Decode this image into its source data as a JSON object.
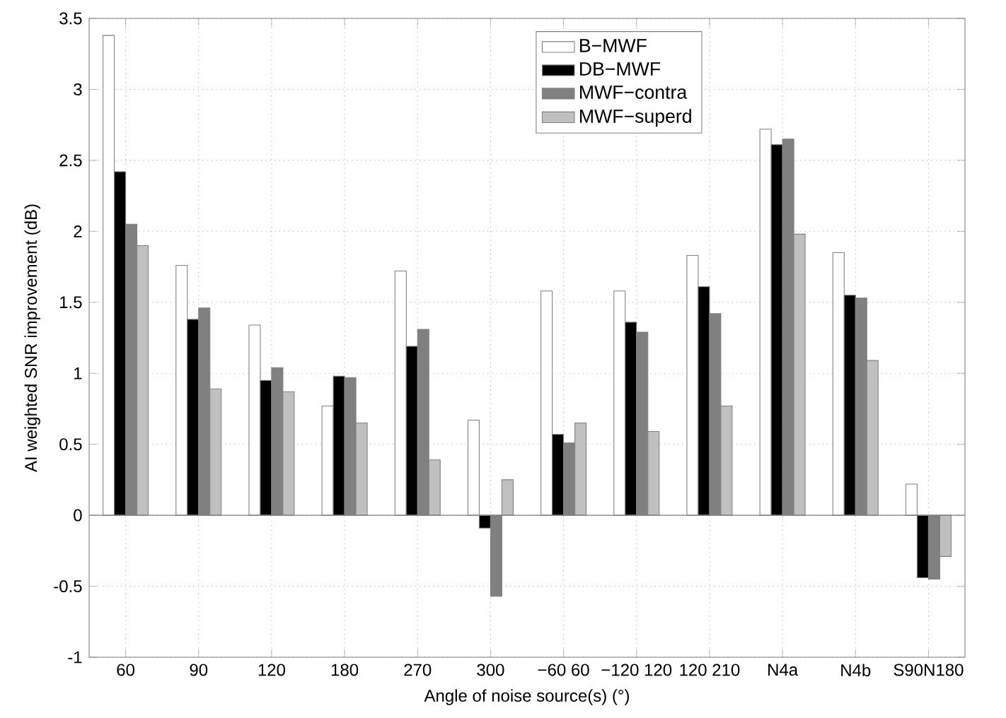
{
  "chart_data": {
    "type": "bar",
    "xlabel": "Angle of noise source(s) (°)",
    "ylabel": "AI weighted SNR improvement (dB)",
    "categories": [
      "60",
      "90",
      "120",
      "180",
      "270",
      "300",
      "−60 60",
      "−120 120",
      "120 210",
      "N4a",
      "N4b",
      "S90N180"
    ],
    "series": [
      {
        "name": "B−MWF",
        "color": "#ffffff",
        "values": [
          3.38,
          1.76,
          1.34,
          0.77,
          1.72,
          0.67,
          1.58,
          1.58,
          1.83,
          2.72,
          1.85,
          0.22
        ]
      },
      {
        "name": "DB−MWF",
        "color": "#000000",
        "values": [
          2.42,
          1.38,
          0.95,
          0.98,
          1.19,
          -0.09,
          0.57,
          1.36,
          1.61,
          2.61,
          1.55,
          -0.44
        ]
      },
      {
        "name": "MWF−contra",
        "color": "#808080",
        "values": [
          2.05,
          1.46,
          1.04,
          0.97,
          1.31,
          -0.57,
          0.51,
          1.29,
          1.42,
          2.65,
          1.53,
          -0.45
        ]
      },
      {
        "name": "MWF−superd",
        "color": "#c0c0c0",
        "values": [
          1.9,
          0.89,
          0.87,
          0.65,
          0.39,
          0.25,
          0.65,
          0.59,
          0.77,
          1.98,
          1.09,
          -0.29
        ]
      }
    ],
    "ylim": [
      -1,
      3.5
    ],
    "yticks": [
      -1,
      -0.5,
      0,
      0.5,
      1,
      1.5,
      2,
      2.5,
      3,
      3.5
    ],
    "grid": true,
    "legend": "top right"
  }
}
